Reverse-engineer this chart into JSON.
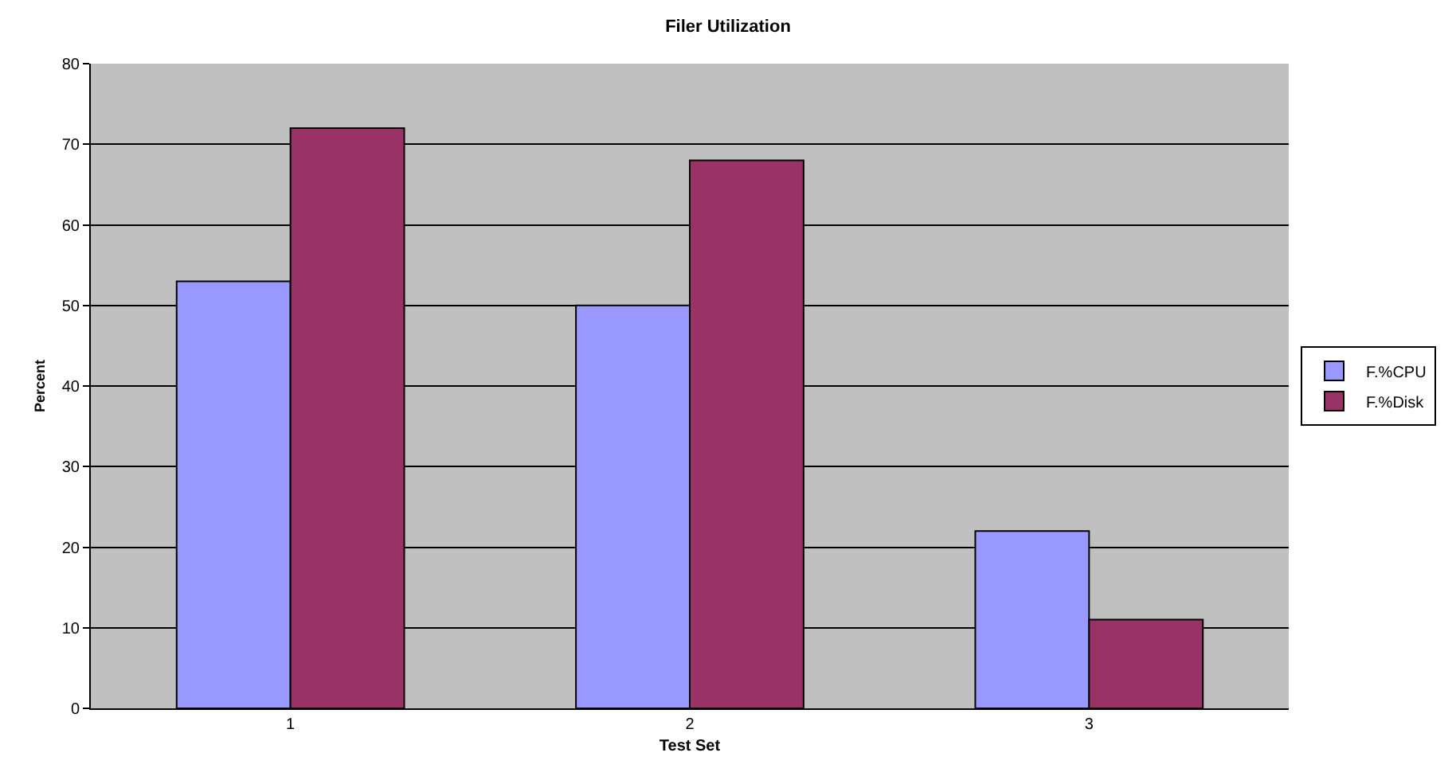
{
  "chart_data": {
    "type": "bar",
    "title": "Filer Utilization",
    "xlabel": "Test Set",
    "ylabel": "Percent",
    "categories": [
      "1",
      "2",
      "3"
    ],
    "series": [
      {
        "name": "F.%CPU",
        "color": "#9999ff",
        "values": [
          53,
          50,
          22
        ]
      },
      {
        "name": "F.%Disk",
        "color": "#993366",
        "values": [
          72,
          68,
          11
        ]
      }
    ],
    "ylim": [
      0,
      80
    ],
    "yticks": [
      0,
      10,
      20,
      30,
      40,
      50,
      60,
      70,
      80
    ],
    "grid": "y",
    "legend": "right"
  }
}
